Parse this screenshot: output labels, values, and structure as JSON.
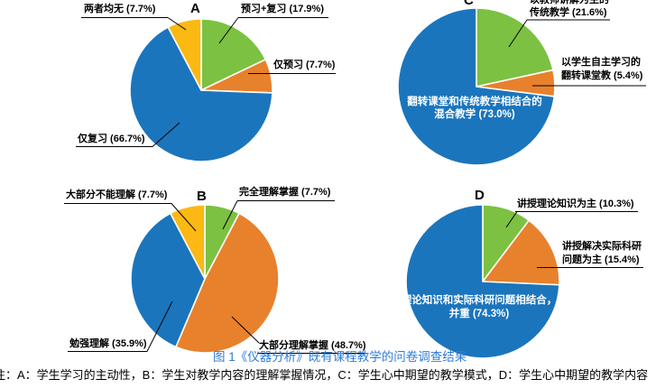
{
  "figure": {
    "caption": "图 1《仪器分析》既有课程教学的问卷调查结果",
    "note": "注：A：学生学习的主动性，B：学生对教学内容的理解掌握情况，C：学生心中期望的教学模式，D：学生心中期望的教学内容"
  },
  "colors": {
    "blue": "#1b75bc",
    "green": "#7cc142",
    "orange": "#e8812c",
    "yellow": "#fcb813",
    "caption_blue": "#2e7cd6"
  },
  "chart_data": [
    {
      "id": "A",
      "type": "pie",
      "title": "A",
      "legend_position": "callouts",
      "slices": [
        {
          "label": "预习+复习",
          "value": 17.9,
          "pct": "17.9",
          "color": "green"
        },
        {
          "label": "仅预习",
          "value": 7.7,
          "pct": "7.7",
          "color": "orange"
        },
        {
          "label": "仅复习",
          "value": 66.7,
          "pct": "66.7",
          "color": "blue"
        },
        {
          "label": "两者均无",
          "value": 7.7,
          "pct": "7.7",
          "color": "yellow"
        }
      ]
    },
    {
      "id": "B",
      "type": "pie",
      "title": "B",
      "legend_position": "callouts",
      "slices": [
        {
          "label": "完全理解掌握",
          "value": 7.7,
          "pct": "7.7",
          "color": "green"
        },
        {
          "label": "大部分理解掌握",
          "value": 48.7,
          "pct": "48.7",
          "color": "orange"
        },
        {
          "label": "勉强理解",
          "value": 35.9,
          "pct": "35.9",
          "color": "blue"
        },
        {
          "label": "大部分不能理解",
          "value": 7.7,
          "pct": "7.7",
          "color": "yellow"
        }
      ]
    },
    {
      "id": "C",
      "type": "pie",
      "title": "C",
      "legend_position": "callouts",
      "slices": [
        {
          "label": "以教师讲解为主的\n传统教学",
          "value": 21.6,
          "pct": "21.6",
          "color": "green"
        },
        {
          "label": "以学生自主学习的\n翻转课堂教",
          "value": 5.4,
          "pct": "5.4",
          "color": "orange"
        },
        {
          "label": "翻转课堂和传统教学相结合的\n混合教学",
          "value": 73.0,
          "pct": "73.0",
          "color": "blue"
        }
      ]
    },
    {
      "id": "D",
      "type": "pie",
      "title": "D",
      "legend_position": "callouts",
      "slices": [
        {
          "label": "讲授理论知识为主",
          "value": 10.3,
          "pct": "10.3",
          "color": "green"
        },
        {
          "label": "讲授解决实际科研\n问题为主",
          "value": 15.4,
          "pct": "15.4",
          "color": "orange"
        },
        {
          "label": "理论知识和实际科研问题相结合，\n并重",
          "value": 74.3,
          "pct": "74.3",
          "color": "blue"
        }
      ]
    }
  ]
}
